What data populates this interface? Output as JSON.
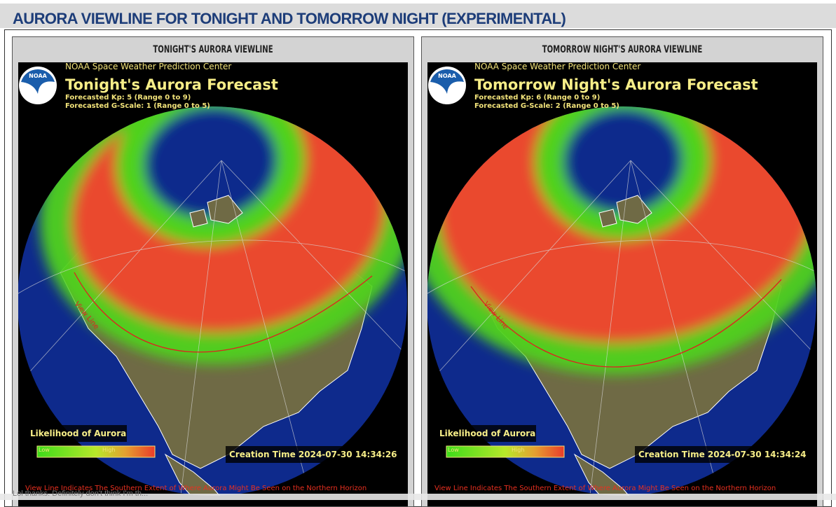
{
  "header": {
    "title": "AURORA VIEWLINE FOR TONIGHT AND TOMORROW NIGHT (EXPERIMENTAL)"
  },
  "panels": [
    {
      "title": "TONIGHT'S AURORA VIEWLINE",
      "image": {
        "logo": "NOAA",
        "agency": "NOAA Space Weather Prediction Center",
        "forecast_title": "Tonight's Aurora Forecast",
        "kp": "Forecasted Kp: 5 (Range 0 to 9)",
        "g_scale": "Forecasted G-Scale: 1 (Range 0 to 5)",
        "view_line_label": "View Line",
        "legend_title": "Likelihood of Aurora",
        "legend_low": "Low",
        "legend_high": "High",
        "creation_time": "Creation Time 2024-07-30 14:34:26",
        "footnote": "View Line Indicates The Southern Extent of Where Aurora Might Be Seen on the Northern Horizon"
      }
    },
    {
      "title": "TOMORROW NIGHT'S AURORA VIEWLINE",
      "image": {
        "logo": "NOAA",
        "agency": "NOAA Space Weather Prediction Center",
        "forecast_title": "Tomorrow Night's Aurora Forecast",
        "kp": "Forecasted Kp: 6 (Range 0 to 9)",
        "g_scale": "Forecasted G-Scale: 2 (Range 0 to 5)",
        "view_line_label": "View Line",
        "legend_title": "Likelihood of Aurora",
        "legend_low": "Low",
        "legend_high": "High",
        "creation_time": "Creation Time 2024-07-30 14:34:24",
        "footnote": "View Line Indicates The Southern Extent of Where Aurora Might Be Seen on the Northern Horizon"
      }
    }
  ],
  "footer_snippet": "Lol thanks. Definitely don't think I'm th..."
}
